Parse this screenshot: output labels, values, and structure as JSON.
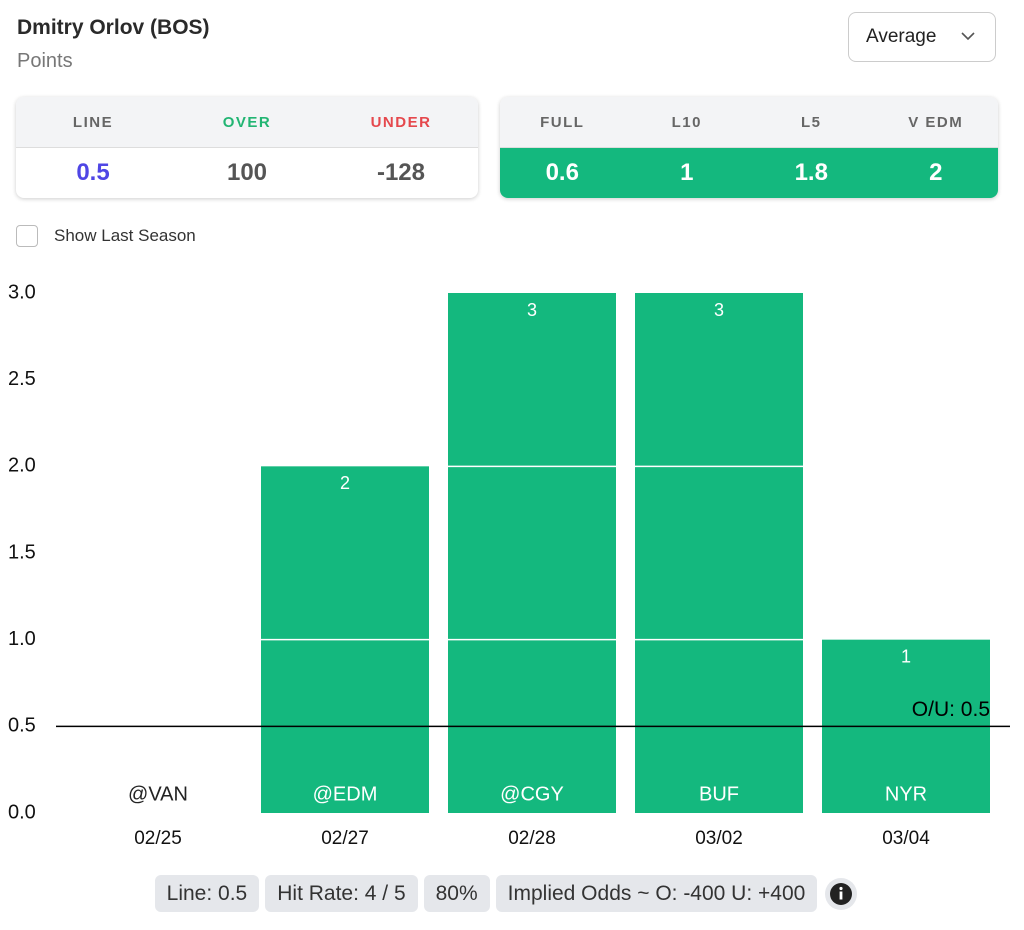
{
  "header": {
    "player": "Dmitry Orlov (BOS)",
    "stat": "Points",
    "dropdown": "Average"
  },
  "line_box": {
    "labels": [
      "LINE",
      "OVER",
      "UNDER"
    ],
    "values": [
      0.5,
      100,
      -128
    ]
  },
  "avg_box": {
    "labels": [
      "FULL",
      "L10",
      "L5",
      "V EDM"
    ],
    "values": [
      0.6,
      1,
      1.8,
      2
    ]
  },
  "toggle": "Show Last Season",
  "chart_data": {
    "type": "bar",
    "categories": [
      "02/25",
      "02/27",
      "02/28",
      "03/02",
      "03/04"
    ],
    "opponents": [
      "@VAN",
      "@EDM",
      "@CGY",
      "BUF",
      "NYR"
    ],
    "values": [
      0,
      2,
      3,
      3,
      1
    ],
    "color": "#14b87e",
    "ylim": [
      0,
      3
    ],
    "yticks": [
      {
        "value": 0,
        "label": "0.0"
      },
      0.5,
      {
        "value": 1,
        "label": "1.0"
      },
      1.5,
      {
        "value": 2,
        "label": "2.0"
      },
      2.5,
      {
        "value": 3,
        "label": "3.0"
      }
    ],
    "line": 0.5,
    "line_label": "O/U: 0.5"
  },
  "footer": [
    "Line: 0.5",
    "Hit Rate: 4 / 5",
    "80%",
    "Implied Odds ~ O: -400 U: +400"
  ]
}
